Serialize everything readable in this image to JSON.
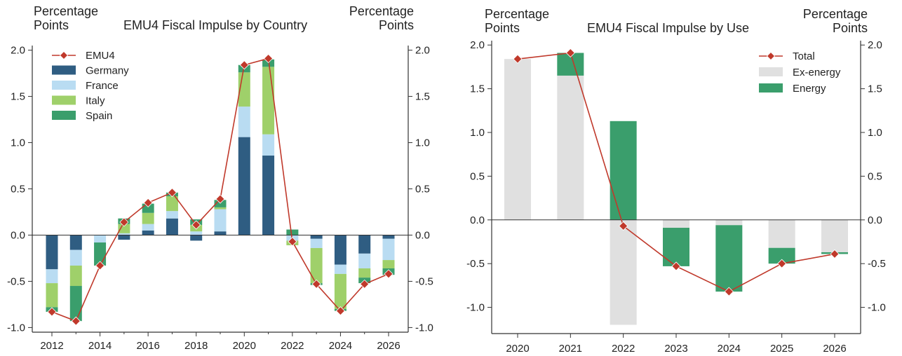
{
  "chart_data": [
    {
      "type": "bar",
      "title": "EMU4 Fiscal Impulse by Country",
      "ylabel_left": "Percentage\nPoints",
      "ylabel_right": "Percentage\nPoints",
      "x": [
        2012,
        2013,
        2014,
        2015,
        2016,
        2017,
        2018,
        2019,
        2020,
        2021,
        2022,
        2023,
        2024,
        2025,
        2026
      ],
      "x_tick_labels": [
        "2012",
        "2014",
        "2016",
        "2018",
        "2020",
        "2022",
        "2024",
        "2026"
      ],
      "y_tick_labels": [
        "-1.0",
        "-0.5",
        "0.0",
        "0.5",
        "1.0",
        "1.5",
        "2.0"
      ],
      "ylim": [
        -1.05,
        2.05
      ],
      "grid": false,
      "legend_position": "top-left",
      "series": [
        {
          "name": "Germany",
          "kind": "bar",
          "color": "#2f5d82",
          "values": [
            -0.37,
            -0.16,
            0.0,
            -0.05,
            0.05,
            0.18,
            -0.06,
            0.04,
            1.06,
            0.86,
            0.0,
            -0.04,
            -0.32,
            -0.2,
            -0.04
          ]
        },
        {
          "name": "France",
          "kind": "bar",
          "color": "#b9dcf2",
          "values": [
            -0.15,
            -0.17,
            -0.08,
            0.02,
            0.07,
            0.08,
            0.04,
            0.24,
            0.33,
            0.23,
            -0.06,
            -0.1,
            -0.1,
            -0.16,
            -0.23
          ]
        },
        {
          "name": "Italy",
          "kind": "bar",
          "color": "#9fd06a",
          "values": [
            -0.26,
            -0.22,
            0.0,
            0.1,
            0.12,
            0.16,
            0.07,
            0.02,
            0.37,
            0.73,
            -0.05,
            -0.38,
            -0.38,
            -0.1,
            -0.09
          ]
        },
        {
          "name": "Spain",
          "kind": "bar",
          "color": "#3a9e6c",
          "values": [
            -0.05,
            -0.38,
            -0.25,
            0.06,
            0.1,
            0.04,
            0.06,
            0.08,
            0.08,
            0.08,
            0.06,
            -0.02,
            -0.02,
            -0.06,
            -0.07
          ]
        },
        {
          "name": "EMU4",
          "kind": "line",
          "color": "#c0392b",
          "values": [
            -0.83,
            -0.93,
            -0.33,
            0.14,
            0.35,
            0.46,
            0.11,
            0.39,
            1.84,
            1.91,
            -0.07,
            -0.53,
            -0.82,
            -0.53,
            -0.42
          ]
        }
      ]
    },
    {
      "type": "bar",
      "title": "EMU4 Fiscal Impulse by Use",
      "ylabel_left": "Percentage\nPoints",
      "ylabel_right": "Percentage\nPoints",
      "categories": [
        "2020",
        "2021",
        "2022",
        "2023",
        "2024",
        "2025",
        "2026"
      ],
      "y_tick_labels": [
        "-1.0",
        "-0.5",
        "0.0",
        "0.5",
        "1.0",
        "1.5",
        "2.0"
      ],
      "ylim": [
        -1.3,
        2.05
      ],
      "grid": false,
      "legend_position": "top-right",
      "series": [
        {
          "name": "Ex-energy",
          "kind": "bar",
          "color": "#e0e0e0",
          "values": [
            1.84,
            1.65,
            -1.2,
            -0.09,
            -0.06,
            -0.32,
            -0.37
          ]
        },
        {
          "name": "Energy",
          "kind": "bar",
          "color": "#3a9e6c",
          "values": [
            0.0,
            0.26,
            1.13,
            -0.44,
            -0.76,
            -0.18,
            -0.02
          ]
        },
        {
          "name": "Total",
          "kind": "line",
          "color": "#c0392b",
          "values": [
            1.84,
            1.91,
            -0.07,
            -0.53,
            -0.82,
            -0.5,
            -0.39
          ]
        }
      ]
    }
  ]
}
